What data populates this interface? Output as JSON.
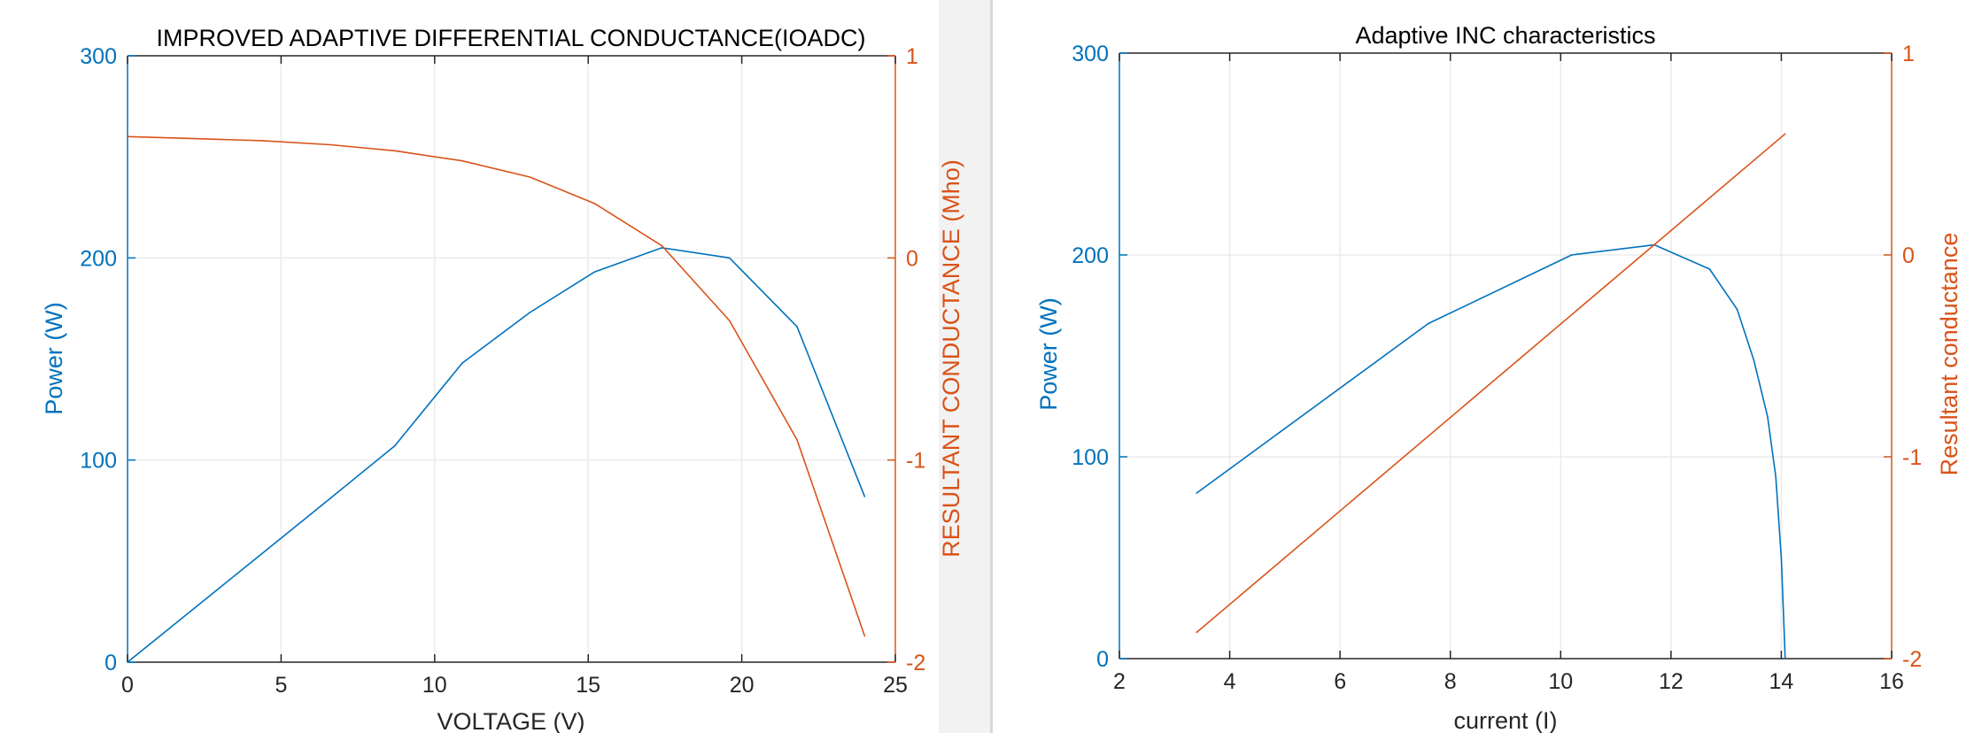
{
  "chart_data": [
    {
      "type": "line",
      "title": "IMPROVED ADAPTIVE DIFFERENTIAL CONDUCTANCE(IOADC)",
      "xlabel": "VOLTAGE (V)",
      "ylabel_left": "Power (W)",
      "ylabel_right": "RESULTANT CONDUCTANCE (Mho)",
      "xlim": [
        0,
        25
      ],
      "ylim_left": [
        0,
        300
      ],
      "ylim_right": [
        -2,
        1
      ],
      "xticks": [
        "0",
        "5",
        "10",
        "15",
        "20",
        "25"
      ],
      "yticks_left": [
        "0",
        "100",
        "200",
        "300"
      ],
      "yticks_right": [
        "-2",
        "-1",
        "0",
        "1"
      ],
      "grid": true,
      "series": [
        {
          "axis": "left",
          "color": "#0072BD",
          "x": [
            0,
            2.2,
            4.4,
            6.6,
            8.7,
            10.9,
            13.1,
            15.2,
            17.4,
            19.6,
            21.8,
            24.0
          ],
          "y": [
            0,
            27,
            54,
            81,
            107,
            148,
            173,
            193,
            205,
            200,
            166,
            82
          ]
        },
        {
          "axis": "right",
          "color": "#D95319",
          "x": [
            0,
            2.2,
            4.4,
            6.6,
            8.7,
            10.9,
            13.1,
            15.2,
            17.4,
            19.6,
            21.8,
            24.0
          ],
          "y": [
            0.6,
            0.59,
            0.58,
            0.56,
            0.53,
            0.48,
            0.4,
            0.27,
            0.06,
            -0.31,
            -0.9,
            -1.87
          ]
        }
      ]
    },
    {
      "type": "line",
      "title": "Adaptive INC characteristics",
      "xlabel": "current (I)",
      "ylabel_left": "Power (W)",
      "ylabel_right": "Resultant conductance",
      "xlim": [
        2,
        16
      ],
      "ylim_left": [
        0,
        300
      ],
      "ylim_right": [
        -2,
        1
      ],
      "xticks": [
        "2",
        "4",
        "6",
        "8",
        "10",
        "12",
        "14",
        "16"
      ],
      "yticks_left": [
        "0",
        "100",
        "200",
        "300"
      ],
      "yticks_right": [
        "-2",
        "-1",
        "0",
        "1"
      ],
      "grid": true,
      "series": [
        {
          "axis": "left",
          "color": "#0072BD",
          "x": [
            3.4,
            7.6,
            10.2,
            11.7,
            12.7,
            13.2,
            13.5,
            13.75,
            13.9,
            14.0,
            14.05,
            14.07
          ],
          "y": [
            82,
            166,
            200,
            205,
            193,
            173,
            148,
            120,
            90,
            50,
            15,
            0
          ]
        },
        {
          "axis": "right",
          "color": "#D95319",
          "x": [
            3.4,
            14.07
          ],
          "y": [
            -1.87,
            0.6
          ]
        }
      ]
    }
  ]
}
